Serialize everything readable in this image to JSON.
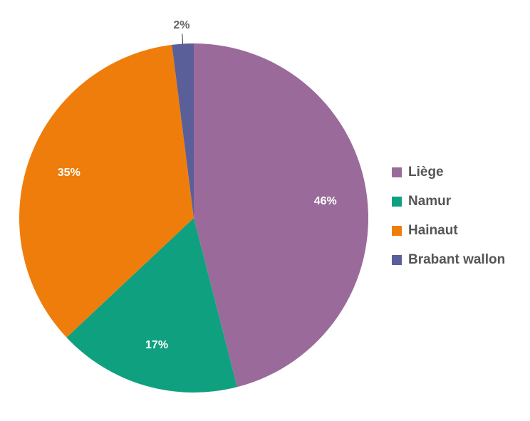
{
  "chart_data": {
    "type": "pie",
    "categories": [
      "Liège",
      "Namur",
      "Hainaut",
      "Brabant wallon"
    ],
    "values": [
      46,
      17,
      35,
      2
    ],
    "value_labels": [
      "46%",
      "17%",
      "35%",
      "2%"
    ],
    "colors": [
      "#9a6b9a",
      "#0fa07f",
      "#ef7d0b",
      "#5a5f99"
    ],
    "legend": "right"
  }
}
